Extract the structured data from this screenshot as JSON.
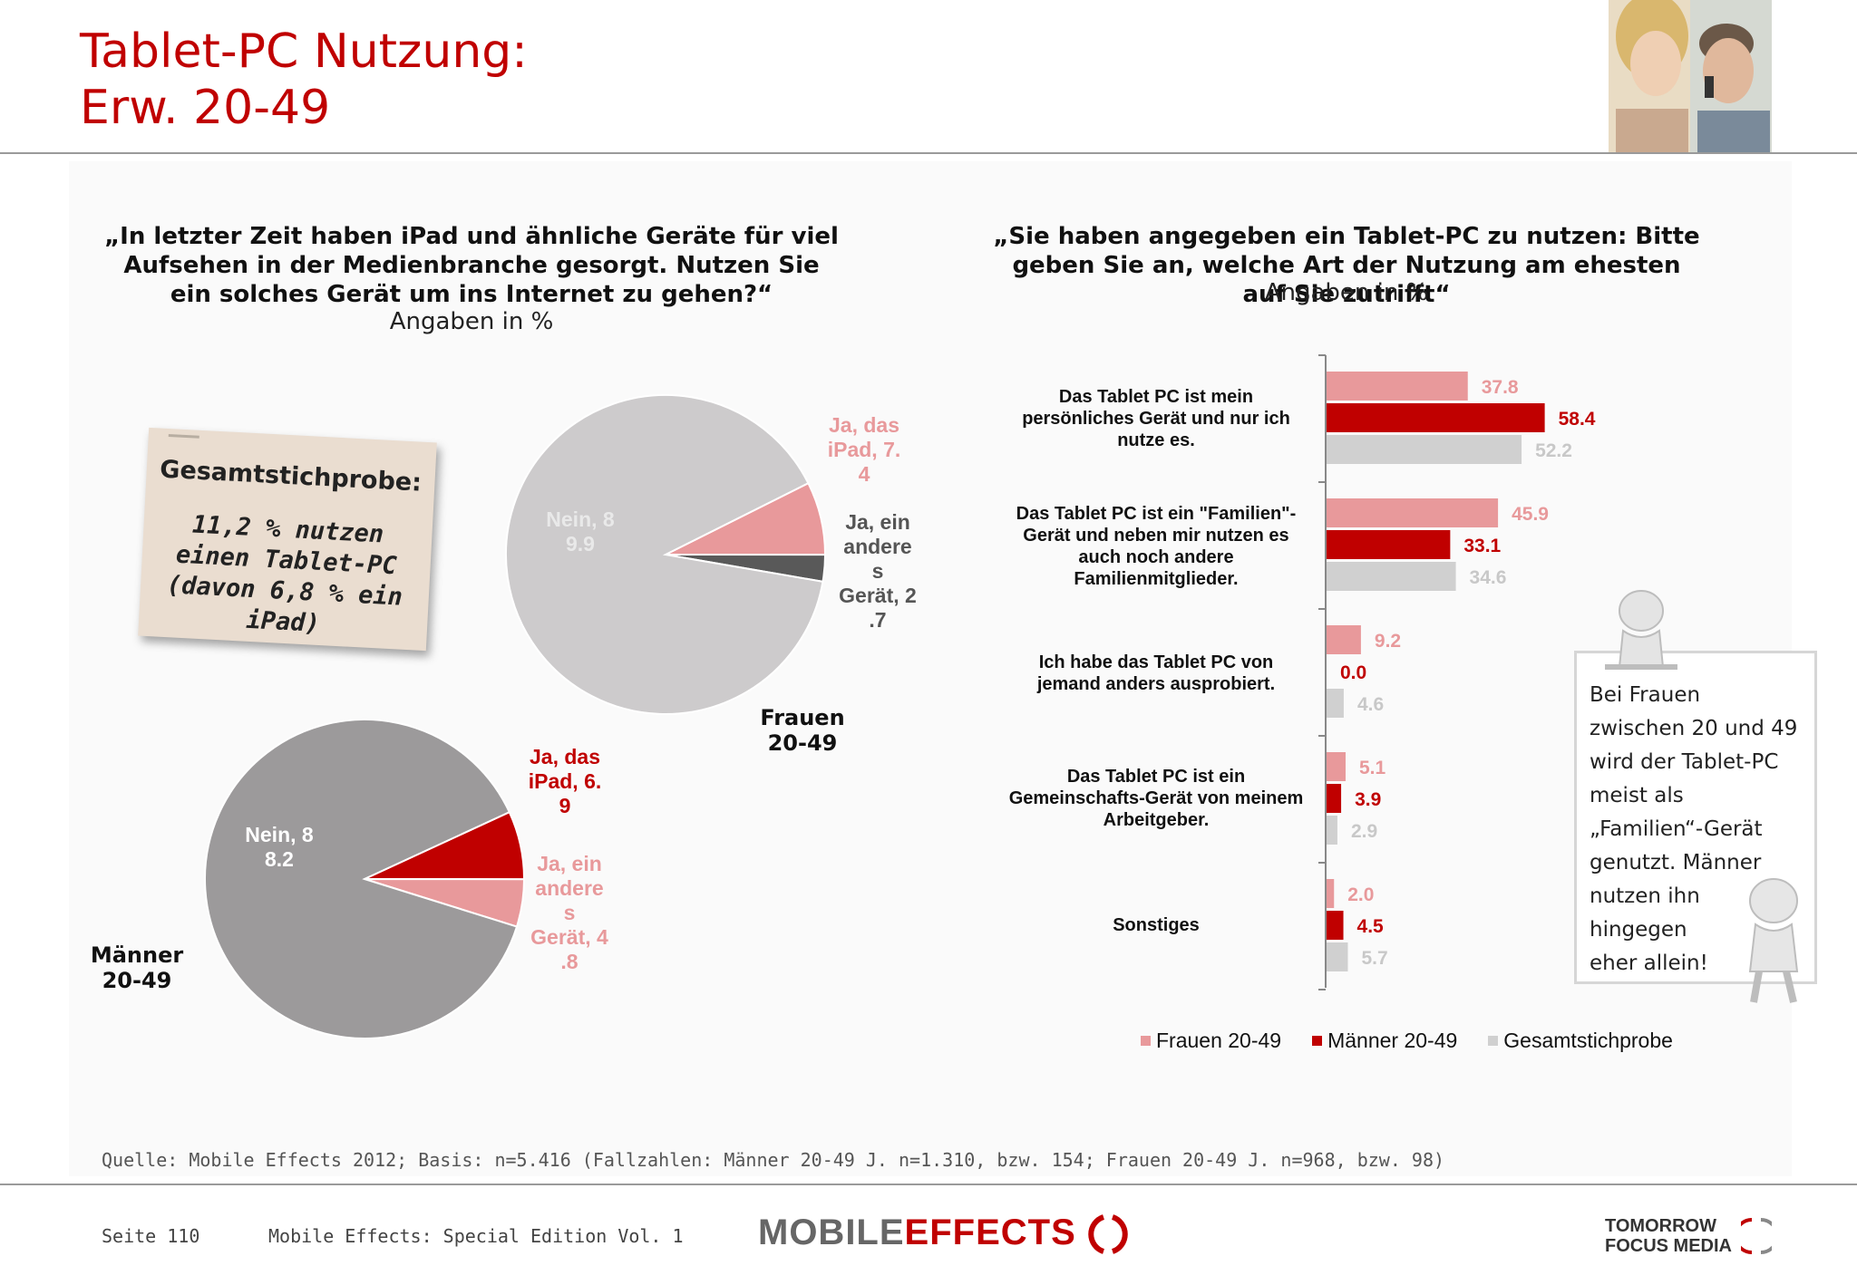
{
  "header": {
    "title_line1": "Tablet-PC Nutzung:",
    "title_line2": "Erw. 20-49"
  },
  "left": {
    "question": "„In letzter Zeit haben iPad und ähnliche Geräte für viel Aufsehen in der Medienbranche gesorgt. Nutzen Sie ein solches Gerät um ins Internet zu gehen?“",
    "unit": "Angaben in %",
    "note_title": "Gesamtstichprobe:",
    "note_body": "11,2 % nutzen einen Tablet-PC (davon 6,8 % ein iPad)"
  },
  "right": {
    "question": "„Sie haben angegeben ein Tablet-PC zu nutzen: Bitte geben Sie an, welche Art der Nutzung am ehesten auf Sie zutrifft“",
    "unit": "Angaben in %"
  },
  "callout": {
    "lines": [
      "Bei Frauen",
      "zwischen 20 und 49",
      "wird der Tablet-PC",
      "meist als",
      "„Familien“-Gerät",
      "genutzt. Männer",
      "nutzen ihn",
      "hingegen",
      "eher allein!"
    ]
  },
  "footer": {
    "source": "Quelle: Mobile Effects 2012; Basis: n=5.416 (Fallzahlen: Männer 20-49 J. n=1.310, bzw. 154; Frauen 20-49 J. n=968, bzw. 98)",
    "page": "Seite 110",
    "publication": "Mobile Effects: Special Edition Vol. 1",
    "logo_mobile": "MOBILE",
    "logo_effects": "EFFECTS",
    "logo_tfm_1": "TOMORROW",
    "logo_tfm_2": "FOCUS MEDIA"
  },
  "colors": {
    "accent": "#c00000",
    "frauen": "#e8999b",
    "maenner": "#c00000",
    "gesamt": "#cccccc"
  },
  "chart_data": [
    {
      "type": "pie",
      "group": "Frauen 20-49",
      "slices": [
        {
          "label": "Nein",
          "value": 89.9,
          "label_text": "Nein, 8\n9.9",
          "color": "#cdcbcc"
        },
        {
          "label": "Ja, das iPad",
          "value": 7.4,
          "label_text": "Ja, das\niPad, 7.\n4",
          "color": "#e8999b"
        },
        {
          "label": "Ja, ein anderes Gerät",
          "value": 2.7,
          "label_text": "Ja, ein\nandere\ns\nGerät, 2\n.7",
          "color": "#595959"
        }
      ]
    },
    {
      "type": "pie",
      "group": "Männer 20-49",
      "slices": [
        {
          "label": "Nein",
          "value": 88.2,
          "label_text": "Nein, 8\n8.2",
          "color": "#9c9a9b"
        },
        {
          "label": "Ja, das iPad",
          "value": 6.9,
          "label_text": "Ja, das\niPad, 6.\n9",
          "color": "#c00000"
        },
        {
          "label": "Ja, ein anderes Gerät",
          "value": 4.8,
          "label_text": "Ja, ein\nandere\ns\nGerät, 4\n.8",
          "color": "#e8999b"
        }
      ]
    },
    {
      "type": "bar",
      "orientation": "horizontal",
      "categories": [
        "Das Tablet PC ist mein persönliches Gerät und nur ich nutze es.",
        "Das Tablet PC ist ein \"Familien\"-Gerät und neben mir nutzen es auch noch andere Familienmitglieder.",
        "Ich habe das Tablet PC von jemand anders ausprobiert.",
        "Das Tablet PC ist ein Gemeinschafts-Gerät von meinem Arbeitgeber.",
        "Sonstiges"
      ],
      "category_labels": [
        [
          "Das Tablet PC ist mein",
          "persönliches Gerät und nur ich",
          "nutze es."
        ],
        [
          "Das Tablet PC ist ein \"Familien\"-",
          "Gerät und neben mir nutzen es",
          "auch noch andere",
          "Familienmitglieder."
        ],
        [
          "Ich habe das Tablet PC von",
          "jemand anders ausprobiert."
        ],
        [
          "Das Tablet PC ist ein",
          "Gemeinschafts-Gerät von meinem",
          "Arbeitgeber."
        ],
        [
          "Sonstiges"
        ]
      ],
      "series": [
        {
          "name": "Frauen 20-49",
          "color": "#e8999b",
          "label_color": "#e8999b",
          "values": [
            37.8,
            45.9,
            9.2,
            5.1,
            2.0
          ]
        },
        {
          "name": "Männer 20-49",
          "color": "#c00000",
          "label_color": "#c00000",
          "values": [
            58.4,
            33.1,
            0.0,
            3.9,
            4.5
          ]
        },
        {
          "name": "Gesamtstichprobe",
          "color": "#d0d0d0",
          "label_color": "#c8c8c8",
          "values": [
            52.2,
            34.6,
            4.6,
            2.9,
            5.7
          ]
        }
      ],
      "legend_position": "bottom"
    }
  ]
}
